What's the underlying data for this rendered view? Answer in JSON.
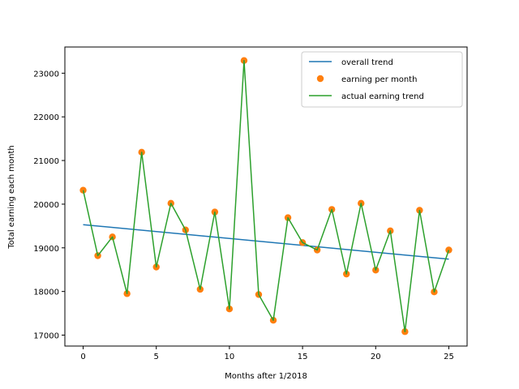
{
  "chart_data": {
    "type": "line",
    "title": "",
    "xlabel": "Months after 1/2018",
    "ylabel": "Total earning each month",
    "xlim": [
      -1.25,
      26.25
    ],
    "ylim": [
      16750,
      23600
    ],
    "xticks": [
      0,
      5,
      10,
      15,
      20,
      25
    ],
    "yticks": [
      17000,
      18000,
      19000,
      20000,
      21000,
      22000,
      23000
    ],
    "grid": false,
    "legend_position": "top-right",
    "colors": {
      "overall_trend": "#1f77b4",
      "earning_points": "#ff7f0e",
      "actual_trend": "#2ca02c"
    },
    "x": [
      0,
      1,
      2,
      3,
      4,
      5,
      6,
      7,
      8,
      9,
      10,
      11,
      12,
      13,
      14,
      15,
      16,
      17,
      18,
      19,
      20,
      21,
      22,
      23,
      24,
      25
    ],
    "series": [
      {
        "name": "overall trend",
        "style": "line",
        "x": [
          0,
          25
        ],
        "values": [
          19530,
          18740
        ]
      },
      {
        "name": "earning per month",
        "style": "markers",
        "values": [
          20320,
          18820,
          19250,
          17950,
          21190,
          18560,
          20020,
          19410,
          18050,
          19820,
          17600,
          23290,
          17930,
          17340,
          19690,
          19120,
          18950,
          19880,
          18400,
          20020,
          18490,
          19390,
          17080,
          19860,
          17990,
          18950
        ]
      },
      {
        "name": "actual earning trend",
        "style": "line",
        "values": [
          20320,
          18820,
          19250,
          17950,
          21190,
          18560,
          20020,
          19410,
          18050,
          19820,
          17600,
          23290,
          17930,
          17340,
          19690,
          19120,
          18950,
          19880,
          18400,
          20020,
          18490,
          19390,
          17080,
          19860,
          17990,
          18950
        ]
      }
    ]
  }
}
